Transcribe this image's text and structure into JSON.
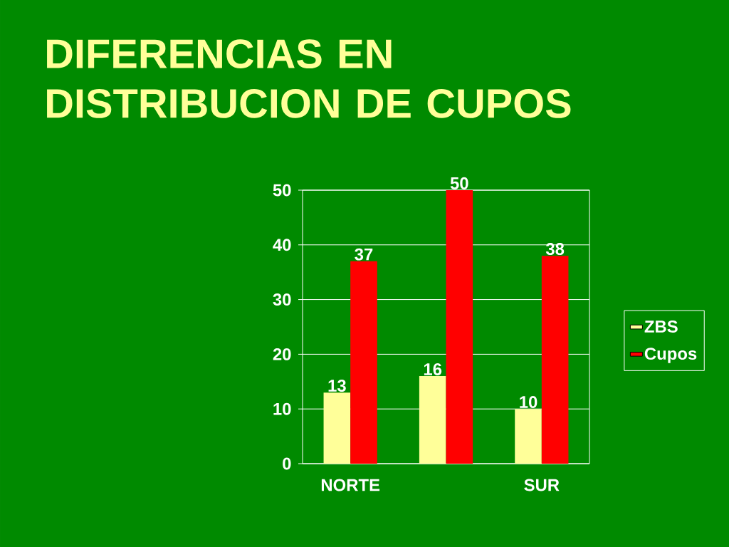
{
  "chart_data": {
    "type": "bar",
    "title": "DIFERENCIAS EN DISTRIBUCION DE CUPOS",
    "categories": [
      "NORTE",
      null,
      "SUR"
    ],
    "series": [
      {
        "name": "ZBS",
        "color": "#ffff99",
        "values": [
          13,
          16,
          10
        ]
      },
      {
        "name": "Cupos",
        "color": "#ff0000",
        "values": [
          37,
          50,
          38
        ]
      }
    ],
    "ylim": [
      0,
      50
    ],
    "yticks": [
      0,
      10,
      20,
      30,
      40,
      50
    ],
    "grid": "y",
    "legend": "right",
    "data_labels": true
  }
}
